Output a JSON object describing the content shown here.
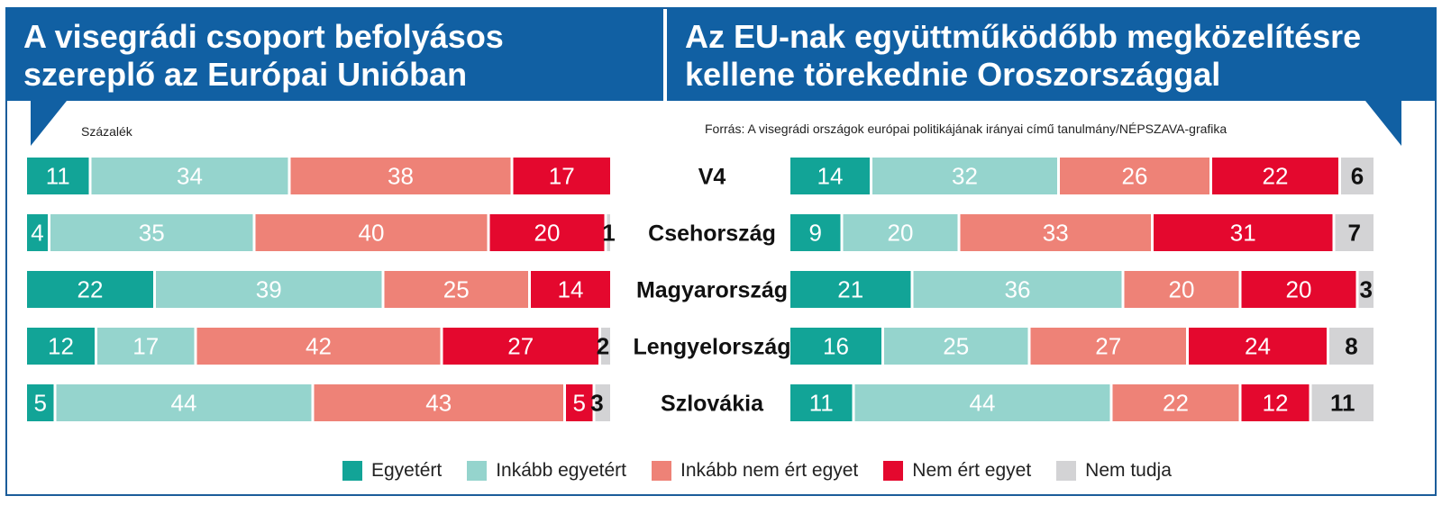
{
  "headers": {
    "left": [
      "A visegrádi csoport befolyásos",
      "szereplő az Európai Unióban"
    ],
    "right": [
      "Az EU-nak együttműködőbb megközelítésre",
      "kellene törekednie Oroszországgal"
    ]
  },
  "unit_note": "Százalék",
  "source_note": "Forrás: A visegrádi országok európai politikájának irányai című tanulmány/NÉPSZAVA-grafika",
  "colors": {
    "Egyetért": "#12a497",
    "Inkább egyetért": "#95d4cd",
    "Inkább nem ért egyet": "#ee8277",
    "Nem ért egyet": "#e4082e",
    "Nem tudja": "#d3d3d5"
  },
  "chart_data": [
    {
      "type": "bar",
      "orientation": "horizontal-stacked",
      "title": "A visegrádi csoport befolyásos szereplő az Európai Unióban",
      "unit": "Százalék",
      "categories": [
        "V4",
        "Csehország",
        "Magyarország",
        "Lengyelország",
        "Szlovákia"
      ],
      "series": [
        {
          "name": "Egyetért",
          "values": [
            11,
            4,
            22,
            12,
            5
          ]
        },
        {
          "name": "Inkább egyetért",
          "values": [
            34,
            35,
            39,
            17,
            44
          ]
        },
        {
          "name": "Inkább nem ért egyet",
          "values": [
            38,
            40,
            25,
            42,
            43
          ]
        },
        {
          "name": "Nem ért egyet",
          "values": [
            17,
            20,
            14,
            27,
            5
          ]
        },
        {
          "name": "Nem tudja",
          "values": [
            0,
            1,
            0,
            2,
            3
          ]
        }
      ]
    },
    {
      "type": "bar",
      "orientation": "horizontal-stacked",
      "title": "Az EU-nak együttműködőbb megközelítésre kellene törekednie Oroszországgal",
      "unit": "Százalék",
      "categories": [
        "V4",
        "Csehország",
        "Magyarország",
        "Lengyelország",
        "Szlovákia"
      ],
      "series": [
        {
          "name": "Egyetért",
          "values": [
            14,
            9,
            21,
            16,
            11
          ]
        },
        {
          "name": "Inkább egyetért",
          "values": [
            32,
            20,
            36,
            25,
            44
          ]
        },
        {
          "name": "Inkább nem ért egyet",
          "values": [
            26,
            33,
            20,
            27,
            22
          ]
        },
        {
          "name": "Nem ért egyet",
          "values": [
            22,
            31,
            20,
            24,
            12
          ]
        },
        {
          "name": "Nem tudja",
          "values": [
            6,
            7,
            3,
            8,
            11
          ]
        }
      ]
    }
  ],
  "legend": [
    "Egyetért",
    "Inkább egyetért",
    "Inkább nem ért egyet",
    "Nem ért egyet",
    "Nem tudja"
  ]
}
